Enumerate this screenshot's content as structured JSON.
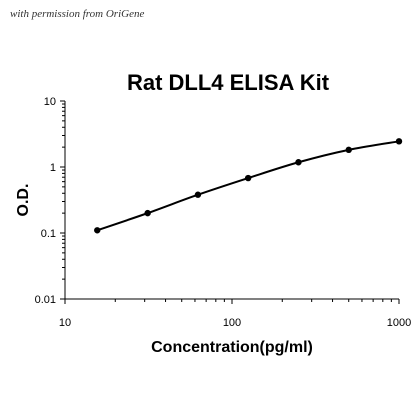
{
  "watermark": "with permission from OriGene",
  "chart_data": {
    "type": "line",
    "title": "Rat DLL4 ELISA Kit",
    "xlabel": "Concentration(pg/ml)",
    "ylabel": "O.D.",
    "x_scale": "log",
    "y_scale": "log",
    "xlim": [
      10,
      1000
    ],
    "ylim": [
      0.01,
      10
    ],
    "x_ticks": [
      "10",
      "100",
      "1000"
    ],
    "y_ticks": [
      "0.01",
      "0.1",
      "1",
      "10"
    ],
    "grid": false,
    "legend": "none",
    "series": [
      {
        "x": [
          15.6,
          31.25,
          62.5,
          125,
          250,
          500,
          1000
        ],
        "y": [
          0.11,
          0.2,
          0.38,
          0.68,
          1.18,
          1.82,
          2.45
        ]
      }
    ],
    "colors": {
      "line": "#000000",
      "marker": "#000000"
    }
  }
}
